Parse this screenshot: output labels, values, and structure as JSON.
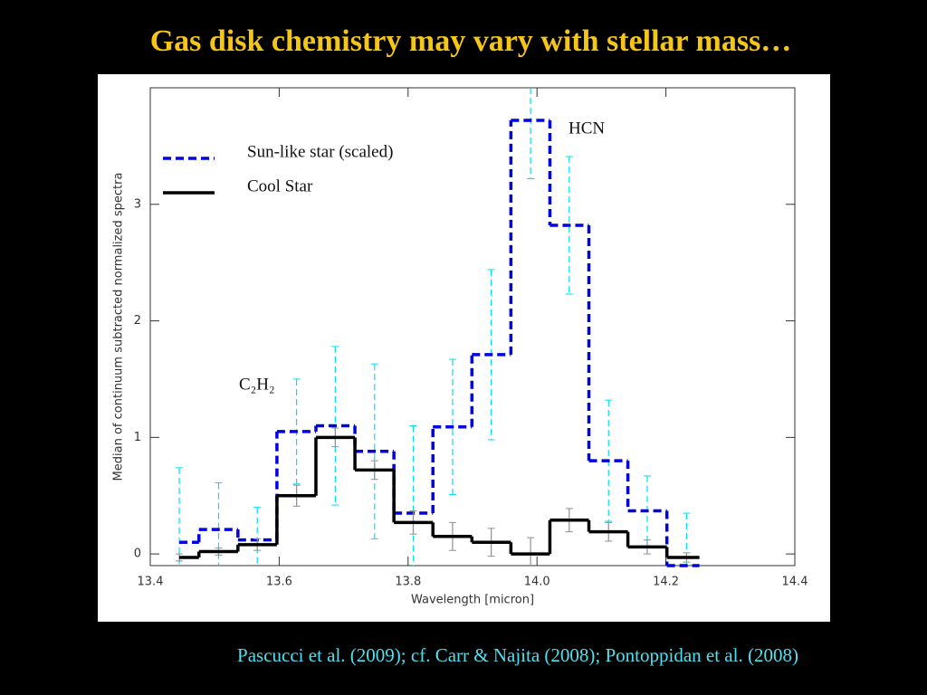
{
  "chart_data": {
    "type": "step",
    "title": "Gas disk chemistry may vary with stellar mass…",
    "source": "Pascucci  et al. (2009); cf. Carr & Najita (2008); Pontoppidan et al. (2008)",
    "x_label": "Wavelength [micron]",
    "y_label": "Median of continuum subtracted normalized spectra",
    "x": [
      13.445,
      13.506,
      13.566,
      13.627,
      13.687,
      13.748,
      13.808,
      13.869,
      13.929,
      13.99,
      14.05,
      14.111,
      14.171,
      14.232
    ],
    "series": [
      {
        "name": "Sun-like star (scaled)",
        "color": "#0000e0",
        "linestyle": "dashed",
        "error_color": "#00e0f0",
        "values": [
          0.1,
          0.21,
          0.12,
          1.05,
          1.1,
          0.88,
          0.35,
          1.09,
          1.71,
          3.72,
          2.82,
          0.8,
          0.37,
          -0.1
        ],
        "errors": [
          0.64,
          0.4,
          0.28,
          0.45,
          0.68,
          0.75,
          0.75,
          0.58,
          0.73,
          0.5,
          0.59,
          0.52,
          0.3,
          0.45
        ]
      },
      {
        "name": "Cool Star",
        "color": "#000000",
        "linestyle": "solid",
        "error_color": "#909090",
        "values": [
          -0.03,
          0.02,
          0.08,
          0.5,
          1.0,
          0.72,
          0.27,
          0.15,
          0.1,
          0.0,
          0.29,
          0.19,
          0.06,
          -0.03
        ],
        "errors": [
          0.03,
          0.03,
          0.05,
          0.09,
          0.08,
          0.08,
          0.1,
          0.12,
          0.12,
          0.14,
          0.1,
          0.08,
          0.06,
          0.04
        ]
      }
    ],
    "annotations": [
      "HCN",
      "C₂H₂"
    ],
    "xlim": [
      13.4,
      14.4
    ],
    "ylim": [
      -0.1,
      4.0
    ],
    "xticks": [
      13.4,
      13.6,
      13.8,
      {
        "value": 14,
        "label": "14.0"
      },
      14.2,
      14.4
    ],
    "yticks": [
      0,
      1,
      2,
      3
    ],
    "legend": "upper left"
  }
}
